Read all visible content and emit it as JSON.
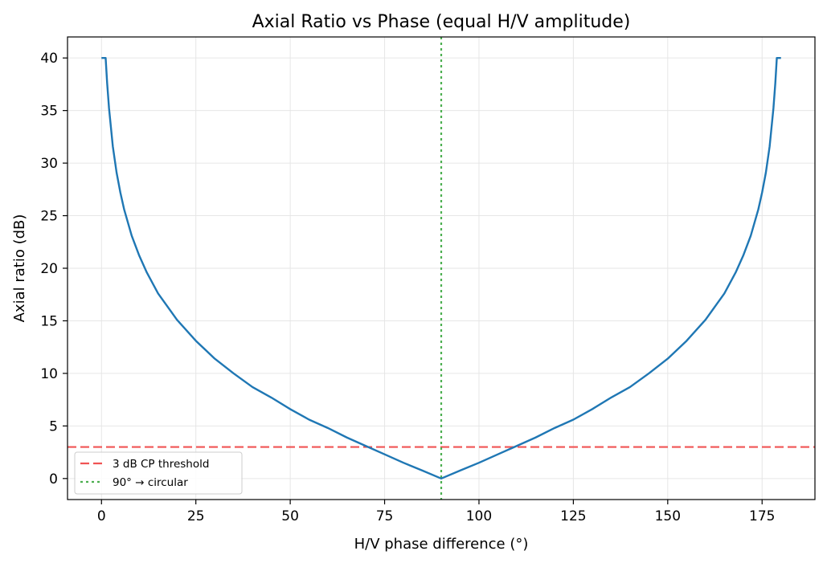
{
  "chart_data": {
    "type": "line",
    "title": "Axial Ratio vs Phase (equal H/V amplitude)",
    "xlabel": "H/V phase difference (°)",
    "ylabel": "Axial ratio (dB)",
    "xlim": [
      -9,
      189
    ],
    "ylim": [
      -2,
      42
    ],
    "xticks": [
      0,
      25,
      50,
      75,
      100,
      125,
      150,
      175
    ],
    "yticks": [
      0,
      5,
      10,
      15,
      20,
      25,
      30,
      35,
      40
    ],
    "grid": true,
    "legend_position": "lower-left",
    "series": [
      {
        "name": "",
        "color": "#1f77b4",
        "x": [
          0,
          0.5,
          1,
          1.1,
          1.5,
          2,
          3,
          4,
          5,
          6,
          8,
          10,
          12,
          15,
          20,
          25,
          30,
          35,
          40,
          45,
          50,
          55,
          60,
          65,
          70,
          75,
          80,
          85,
          90,
          95,
          100,
          105,
          110,
          115,
          120,
          125,
          130,
          135,
          140,
          145,
          150,
          155,
          160,
          165,
          168,
          170,
          172,
          174,
          175,
          176,
          177,
          178,
          178.5,
          178.9,
          179,
          179.5,
          180
        ],
        "y": [
          40,
          40,
          40,
          40,
          37.6,
          35.2,
          31.6,
          29.1,
          27.2,
          25.6,
          23.1,
          21.2,
          19.6,
          17.6,
          15.1,
          13.1,
          11.4,
          10.0,
          8.7,
          7.7,
          6.6,
          5.6,
          4.8,
          3.9,
          3.1,
          2.3,
          1.5,
          0.76,
          0,
          0.76,
          1.5,
          2.3,
          3.1,
          3.9,
          4.8,
          5.6,
          6.6,
          7.7,
          8.7,
          10.0,
          11.4,
          13.1,
          15.1,
          17.6,
          19.6,
          21.2,
          23.1,
          25.6,
          27.2,
          29.1,
          31.6,
          35.2,
          37.6,
          40,
          40,
          40,
          40
        ]
      }
    ],
    "reference_lines": [
      {
        "name": "3 dB CP threshold",
        "orientation": "horizontal",
        "value": 3,
        "color": "#f05454",
        "style": "dashed"
      },
      {
        "name": "90° → circular",
        "orientation": "vertical",
        "value": 90,
        "color": "#4caf50",
        "style": "dotted"
      }
    ]
  }
}
